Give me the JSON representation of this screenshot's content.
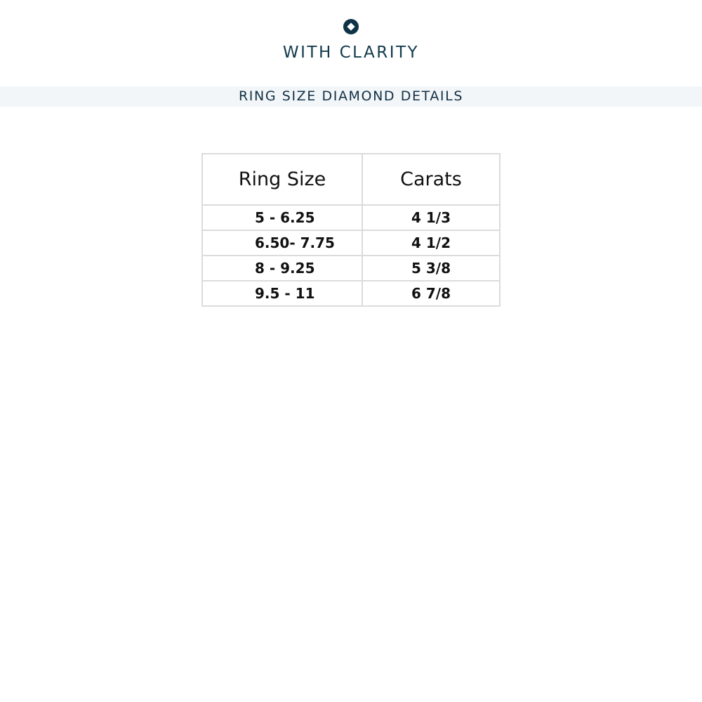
{
  "brand": {
    "name": "WITH CLARITY",
    "logo_icon": "diamond-circle-icon",
    "color": "#123a4c"
  },
  "section_title": "RING SIZE DIAMOND DETAILS",
  "table": {
    "headers": [
      "Ring Size",
      "Carats"
    ],
    "rows": [
      [
        "5 - 6.25",
        "4 1/3"
      ],
      [
        "6.50- 7.75",
        "4 1/2"
      ],
      [
        "8 - 9.25",
        "5 3/8"
      ],
      [
        "9.5 - 11",
        "6 7/8"
      ]
    ]
  }
}
